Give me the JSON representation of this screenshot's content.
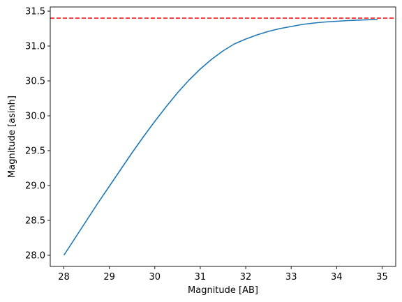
{
  "chart_data": {
    "type": "line",
    "title": "",
    "xlabel": "Magnitude [AB]",
    "ylabel": "Magnitude [asinh]",
    "xlim": [
      27.7,
      35.3
    ],
    "ylim": [
      27.84,
      31.56
    ],
    "xticks": [
      "28",
      "29",
      "30",
      "31",
      "32",
      "33",
      "34",
      "35"
    ],
    "yticks": [
      "28.0",
      "28.5",
      "29.0",
      "29.5",
      "30.0",
      "30.5",
      "31.0",
      "31.5"
    ],
    "grid": false,
    "series": [
      {
        "color": "#1f77b4",
        "style": "solid",
        "x": [
          28.0,
          28.25,
          28.5,
          28.75,
          29.0,
          29.25,
          29.5,
          29.75,
          30.0,
          30.25,
          30.5,
          30.75,
          31.0,
          31.25,
          31.5,
          31.75,
          32.0,
          32.25,
          32.5,
          32.75,
          33.0,
          33.25,
          33.5,
          33.75,
          34.0,
          34.25,
          34.5,
          34.75,
          34.9
        ],
        "y": [
          28.0,
          28.25,
          28.5,
          28.75,
          28.99,
          29.23,
          29.47,
          29.7,
          29.92,
          30.13,
          30.33,
          30.51,
          30.67,
          30.81,
          30.93,
          31.03,
          31.1,
          31.16,
          31.21,
          31.25,
          31.28,
          31.31,
          31.33,
          31.345,
          31.355,
          31.365,
          31.372,
          31.378,
          31.38
        ]
      }
    ],
    "hlines": [
      {
        "y": 31.4,
        "color": "#ff0000",
        "style": "dashed"
      }
    ]
  }
}
